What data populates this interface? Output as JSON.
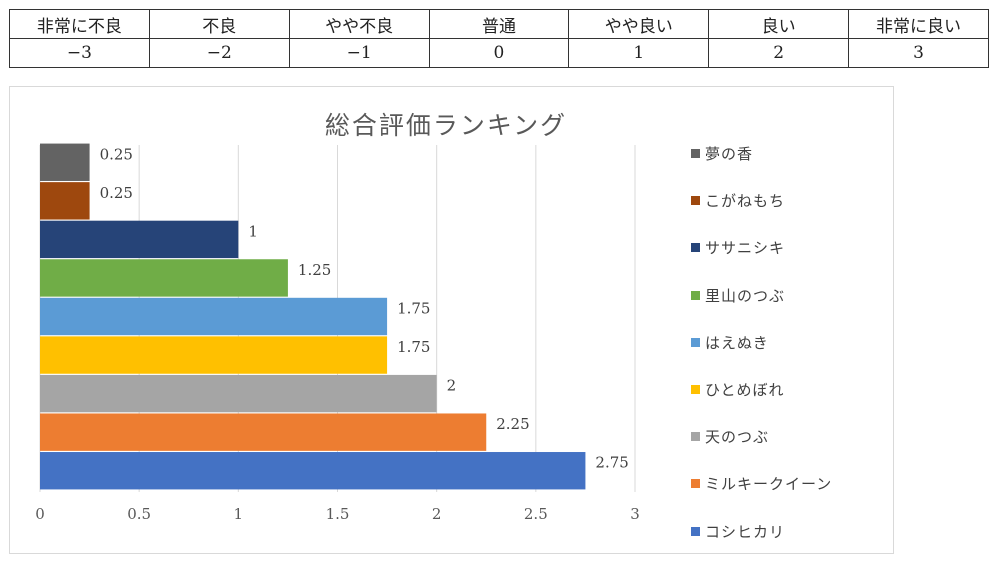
{
  "scale_table": {
    "labels": [
      "非常に不良",
      "不良",
      "やや不良",
      "普通",
      "やや良い",
      "良い",
      "非常に良い"
    ],
    "values": [
      "−3",
      "−2",
      "−1",
      "0",
      "1",
      "2",
      "3"
    ]
  },
  "chart_data": {
    "type": "bar",
    "orientation": "horizontal",
    "title": "総合評価ランキング",
    "categories": [
      "コシヒカリ",
      "ミルキークイーン",
      "天のつぶ",
      "ひとめぼれ",
      "はえぬき",
      "里山のつぶ",
      "ササニシキ",
      "こがねもち",
      "夢の香"
    ],
    "values": [
      2.75,
      2.25,
      2,
      1.75,
      1.75,
      1.25,
      1,
      0.25,
      0.25
    ],
    "data_labels": [
      "2.75",
      "2.25",
      "2",
      "1.75",
      "1.75",
      "1.25",
      "1",
      "0.25",
      "0.25"
    ],
    "colors": [
      "#4472c4",
      "#ed7d31",
      "#a5a5a5",
      "#ffc000",
      "#5b9bd5",
      "#70ad47",
      "#264478",
      "#9e480e",
      "#636363"
    ],
    "xlim": [
      0,
      3
    ],
    "x_ticks": [
      "0",
      "0.5",
      "1",
      "1.5",
      "2",
      "2.5",
      "3"
    ],
    "xlabel": "",
    "ylabel": "",
    "grid": true,
    "legend_position": "right",
    "legend_order": [
      "夢の香",
      "こがねもち",
      "ササニシキ",
      "里山のつぶ",
      "はえぬき",
      "ひとめぼれ",
      "天のつぶ",
      "ミルキークイーン",
      "コシヒカリ"
    ]
  }
}
